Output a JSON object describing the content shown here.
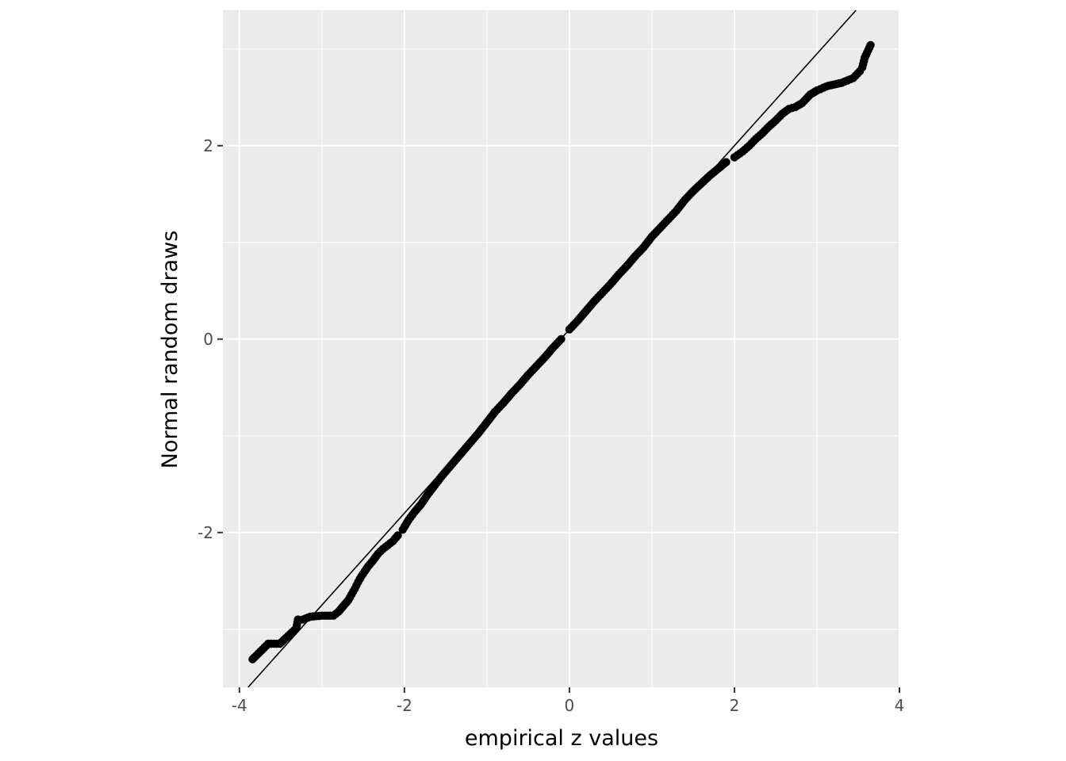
{
  "chart_data": {
    "type": "scatter",
    "xlabel": "empirical z values",
    "ylabel": "Normal random draws",
    "xlim": [
      -4.2,
      4.0
    ],
    "ylim": [
      -3.6,
      3.4
    ],
    "x_ticks": [
      -4,
      -2,
      0,
      2,
      4
    ],
    "x_tick_labels": [
      "-4",
      "-2",
      "0",
      "2",
      "4"
    ],
    "y_ticks": [
      -2,
      0,
      2
    ],
    "y_tick_labels": [
      "-2",
      "0",
      "2"
    ],
    "x_minor": [
      -3,
      -1,
      1,
      3
    ],
    "y_minor": [
      -3,
      -1,
      1,
      3
    ],
    "grid": true,
    "reference_line": {
      "intercept": 0.1,
      "slope": 0.95
    },
    "tail_points_low": [
      [
        -3.84,
        -3.31
      ],
      [
        -3.65,
        -3.15
      ],
      [
        -3.51,
        -3.15
      ],
      [
        -3.31,
        -2.99
      ],
      [
        -3.29,
        -2.9
      ],
      [
        -3.23,
        -2.9
      ],
      [
        -3.14,
        -2.87
      ],
      [
        -3.0,
        -2.86
      ],
      [
        -2.86,
        -2.86
      ],
      [
        -2.8,
        -2.82
      ],
      [
        -2.76,
        -2.78
      ],
      [
        -2.72,
        -2.74
      ],
      [
        -2.68,
        -2.7
      ],
      [
        -2.64,
        -2.64
      ],
      [
        -2.6,
        -2.58
      ],
      [
        -2.56,
        -2.51
      ],
      [
        -2.52,
        -2.45
      ],
      [
        -2.48,
        -2.4
      ],
      [
        -2.44,
        -2.35
      ],
      [
        -2.38,
        -2.29
      ],
      [
        -2.32,
        -2.22
      ],
      [
        -2.26,
        -2.17
      ],
      [
        -2.2,
        -2.13
      ],
      [
        -2.14,
        -2.09
      ],
      [
        -2.08,
        -2.03
      ]
    ],
    "body_points_low": [
      [
        -2.02,
        -1.97
      ],
      [
        -1.95,
        -1.87
      ],
      [
        -1.88,
        -1.79
      ],
      [
        -1.8,
        -1.71
      ],
      [
        -1.72,
        -1.61
      ],
      [
        -1.63,
        -1.51
      ],
      [
        -1.55,
        -1.42
      ],
      [
        -1.46,
        -1.33
      ],
      [
        -1.37,
        -1.24
      ],
      [
        -1.28,
        -1.15
      ],
      [
        -1.19,
        -1.06
      ],
      [
        -1.1,
        -0.97
      ],
      [
        -1.0,
        -0.86
      ],
      [
        -0.9,
        -0.75
      ],
      [
        -0.8,
        -0.66
      ],
      [
        -0.7,
        -0.56
      ],
      [
        -0.6,
        -0.47
      ],
      [
        -0.5,
        -0.37
      ],
      [
        -0.4,
        -0.28
      ],
      [
        -0.3,
        -0.19
      ],
      [
        -0.2,
        -0.09
      ],
      [
        -0.1,
        0.0
      ]
    ],
    "body_points_high": [
      [
        0.0,
        0.1
      ],
      [
        0.1,
        0.19
      ],
      [
        0.2,
        0.29
      ],
      [
        0.3,
        0.39
      ],
      [
        0.4,
        0.48
      ],
      [
        0.5,
        0.57
      ],
      [
        0.6,
        0.67
      ],
      [
        0.7,
        0.76
      ],
      [
        0.8,
        0.86
      ],
      [
        0.9,
        0.95
      ],
      [
        1.0,
        1.06
      ],
      [
        1.1,
        1.15
      ],
      [
        1.2,
        1.24
      ],
      [
        1.3,
        1.33
      ],
      [
        1.4,
        1.44
      ],
      [
        1.5,
        1.53
      ],
      [
        1.6,
        1.61
      ],
      [
        1.7,
        1.69
      ],
      [
        1.8,
        1.76
      ],
      [
        1.9,
        1.83
      ]
    ],
    "tail_points_high": [
      [
        2.0,
        1.88
      ],
      [
        2.1,
        1.94
      ],
      [
        2.18,
        2.0
      ],
      [
        2.26,
        2.07
      ],
      [
        2.34,
        2.13
      ],
      [
        2.42,
        2.2
      ],
      [
        2.5,
        2.26
      ],
      [
        2.58,
        2.33
      ],
      [
        2.66,
        2.38
      ],
      [
        2.74,
        2.4
      ],
      [
        2.82,
        2.44
      ],
      [
        2.92,
        2.53
      ],
      [
        3.0,
        2.57
      ],
      [
        3.08,
        2.6
      ],
      [
        3.14,
        2.62
      ],
      [
        3.3,
        2.65
      ],
      [
        3.44,
        2.7
      ],
      [
        3.52,
        2.77
      ],
      [
        3.55,
        2.81
      ],
      [
        3.58,
        2.91
      ],
      [
        3.65,
        3.04
      ]
    ]
  }
}
